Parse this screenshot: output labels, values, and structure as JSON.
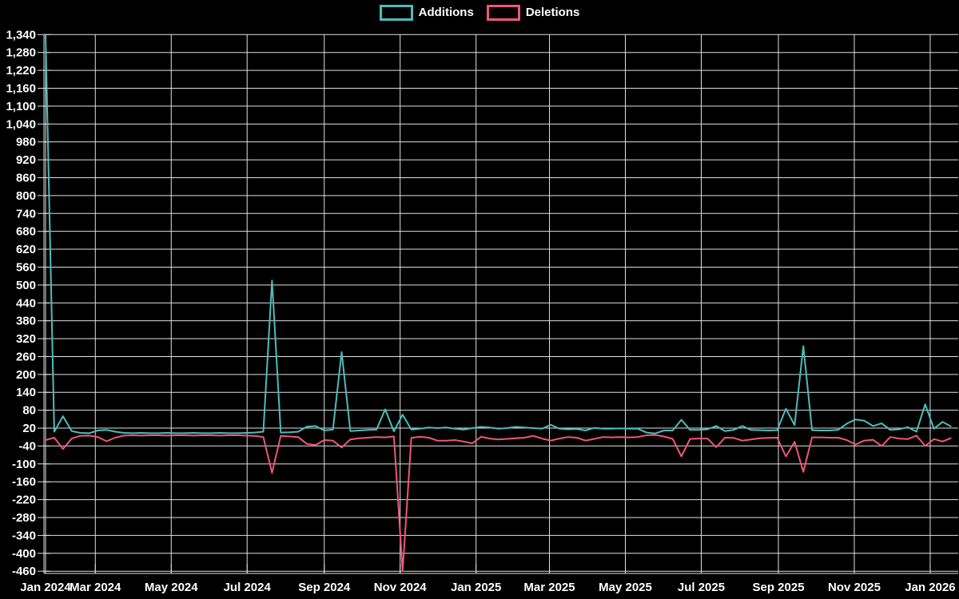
{
  "page": {
    "background": "#000000",
    "text_color": "#ffffff",
    "grid_color": "#e0e0e0"
  },
  "legend": {
    "items": [
      {
        "label": "Additions",
        "color": "#4dbdbd"
      },
      {
        "label": "Deletions",
        "color": "#f0567c"
      }
    ]
  },
  "chart_data": {
    "type": "line",
    "title": "",
    "xlabel": "",
    "ylabel": "",
    "grid": true,
    "legend_position": "top-center",
    "background": "#000000",
    "x_start_date": "2024-01-21",
    "interval_days": 7,
    "ylim": [
      -460,
      1340
    ],
    "y_tick_step": 60,
    "y_ticks": [
      "1,340",
      "1,280",
      "1,220",
      "1,160",
      "1,100",
      "1,040",
      "980",
      "920",
      "860",
      "800",
      "740",
      "680",
      "620",
      "560",
      "500",
      "440",
      "380",
      "320",
      "260",
      "200",
      "140",
      "80",
      "20",
      "-40",
      "-100",
      "-160",
      "-220",
      "-280",
      "-340",
      "-400",
      "-460"
    ],
    "x_ticks": [
      {
        "label": "Jan 2024",
        "date": "2024-01-01"
      },
      {
        "label": "Mar 2024",
        "date": "2024-03-01"
      },
      {
        "label": "May 2024",
        "date": "2024-05-01"
      },
      {
        "label": "Jul 2024",
        "date": "2024-07-01"
      },
      {
        "label": "Sep 2024",
        "date": "2024-09-01"
      },
      {
        "label": "Nov 2024",
        "date": "2024-11-01"
      },
      {
        "label": "Jan 2025",
        "date": "2025-01-01"
      },
      {
        "label": "Mar 2025",
        "date": "2025-03-01"
      },
      {
        "label": "May 2025",
        "date": "2025-05-01"
      },
      {
        "label": "Jul 2025",
        "date": "2025-07-01"
      },
      {
        "label": "Sep 2025",
        "date": "2025-09-01"
      },
      {
        "label": "Nov 2025",
        "date": "2025-11-01"
      },
      {
        "label": "Jan 2026",
        "date": "2026-01-01"
      }
    ],
    "series": [
      {
        "name": "Additions",
        "color": "#4dbdbd",
        "values": [
          1340,
          8,
          60,
          10,
          4,
          3,
          12,
          14,
          8,
          4,
          3,
          4,
          3,
          3,
          4,
          3,
          3,
          4,
          3,
          3,
          4,
          3,
          3,
          4,
          5,
          8,
          515,
          5,
          6,
          8,
          25,
          27,
          12,
          15,
          275,
          10,
          12,
          14,
          15,
          83,
          9,
          65,
          15,
          18,
          22,
          20,
          22,
          18,
          15,
          20,
          24,
          22,
          18,
          20,
          24,
          22,
          20,
          18,
          31,
          18,
          16,
          17,
          12,
          21,
          18,
          18,
          19,
          18,
          18,
          5,
          2,
          12,
          12,
          48,
          14,
          14,
          16,
          27,
          10,
          14,
          27,
          14,
          13,
          12,
          13,
          85,
          30,
          295,
          13,
          12,
          12,
          14,
          35,
          49,
          45,
          27,
          36,
          14,
          16,
          23,
          8,
          100,
          18,
          41,
          25
        ]
      },
      {
        "name": "Deletions",
        "color": "#f0567c",
        "values": [
          -20,
          -12,
          -50,
          -15,
          -6,
          -5,
          -10,
          -24,
          -12,
          -5,
          -4,
          -5,
          -4,
          -4,
          -5,
          -4,
          -4,
          -5,
          -4,
          -4,
          -5,
          -4,
          -4,
          -5,
          -6,
          -10,
          -130,
          -6,
          -8,
          -10,
          -33,
          -37,
          -20,
          -22,
          -45,
          -18,
          -14,
          -12,
          -10,
          -11,
          -8,
          -460,
          -13,
          -9,
          -12,
          -22,
          -22,
          -20,
          -25,
          -31,
          -9,
          -15,
          -18,
          -16,
          -14,
          -12,
          -6,
          -15,
          -22,
          -15,
          -10,
          -12,
          -22,
          -16,
          -10,
          -11,
          -10,
          -11,
          -10,
          -4,
          -3,
          -8,
          -16,
          -75,
          -16,
          -15,
          -15,
          -44,
          -12,
          -13,
          -22,
          -18,
          -14,
          -13,
          -12,
          -75,
          -26,
          -127,
          -11,
          -11,
          -12,
          -12,
          -20,
          -35,
          -22,
          -19,
          -40,
          -10,
          -15,
          -17,
          -5,
          -40,
          -17,
          -25,
          -13
        ]
      }
    ]
  }
}
